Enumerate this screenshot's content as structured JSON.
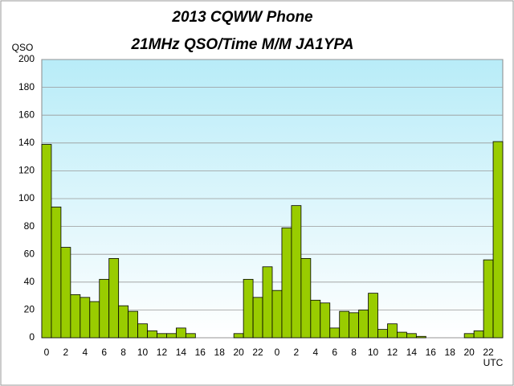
{
  "chart_data": {
    "type": "bar",
    "title": "2013  CQWW Phone",
    "subtitle": "21MHz QSO/Time  M/M JA1YPA",
    "y_label": "QSO",
    "x_label": "UTC",
    "categories": [
      "0",
      null,
      "2",
      null,
      "4",
      null,
      "6",
      null,
      "8",
      null,
      "10",
      null,
      "12",
      null,
      "14",
      null,
      "16",
      null,
      "18",
      null,
      "20",
      null,
      "22",
      null,
      "0",
      null,
      "2",
      null,
      "4",
      null,
      "6",
      null,
      "8",
      null,
      "10",
      null,
      "12",
      null,
      "14",
      null,
      "16",
      null,
      "18",
      null,
      "20",
      null,
      "22",
      null
    ],
    "values": [
      139,
      94,
      65,
      31,
      29,
      26,
      42,
      57,
      23,
      19,
      10,
      5,
      3,
      3,
      7,
      3,
      0,
      0,
      0,
      0,
      3,
      42,
      29,
      51,
      34,
      79,
      95,
      57,
      27,
      25,
      7,
      19,
      18,
      20,
      32,
      6,
      10,
      4,
      3,
      1,
      0,
      0,
      0,
      0,
      3,
      5,
      56,
      141
    ],
    "color": "#99cc00",
    "ylim": [
      0,
      200
    ],
    "yticks": [
      0,
      20,
      40,
      60,
      80,
      100,
      120,
      140,
      160,
      180,
      200
    ],
    "grid": true
  }
}
